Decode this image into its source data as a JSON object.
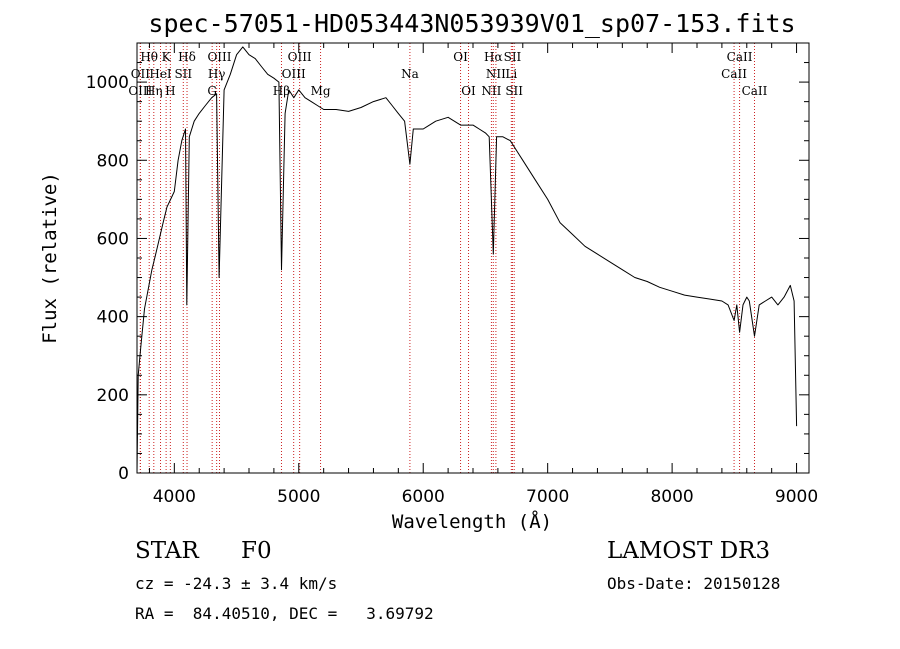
{
  "chart_data": {
    "type": "line",
    "title": "spec-57051-HD053443N053939V01_sp07-153.fits",
    "xlabel": "Wavelength (Å)",
    "ylabel": "Flux (relative)",
    "xlim": [
      3700,
      9100
    ],
    "ylim": [
      0,
      1100
    ],
    "xticks": [
      4000,
      5000,
      6000,
      7000,
      8000,
      9000
    ],
    "yticks": [
      0,
      200,
      400,
      600,
      800,
      1000
    ],
    "grid": false,
    "legend": "none",
    "series": [
      {
        "name": "flux",
        "x": [
          3700,
          3710,
          3730,
          3760,
          3790,
          3820,
          3850,
          3880,
          3910,
          3940,
          3970,
          4000,
          4030,
          4060,
          4090,
          4100,
          4120,
          4160,
          4200,
          4250,
          4300,
          4340,
          4360,
          4400,
          4450,
          4500,
          4550,
          4600,
          4650,
          4700,
          4750,
          4800,
          4840,
          4861,
          4890,
          4920,
          4960,
          5000,
          5050,
          5100,
          5150,
          5200,
          5300,
          5400,
          5500,
          5600,
          5700,
          5750,
          5800,
          5850,
          5893,
          5920,
          6000,
          6100,
          6200,
          6300,
          6400,
          6450,
          6500,
          6530,
          6563,
          6590,
          6640,
          6700,
          6760,
          6800,
          6900,
          7000,
          7100,
          7200,
          7300,
          7400,
          7500,
          7600,
          7700,
          7800,
          7900,
          8000,
          8100,
          8200,
          8300,
          8400,
          8450,
          8498,
          8520,
          8542,
          8570,
          8600,
          8620,
          8662,
          8700,
          8750,
          8800,
          8850,
          8900,
          8950,
          8980,
          9000
        ],
        "y": [
          0,
          250,
          320,
          420,
          470,
          520,
          560,
          600,
          640,
          680,
          700,
          720,
          800,
          850,
          880,
          430,
          860,
          900,
          920,
          940,
          960,
          970,
          500,
          980,
          1020,
          1070,
          1090,
          1070,
          1060,
          1040,
          1020,
          1010,
          1000,
          520,
          920,
          980,
          960,
          980,
          960,
          950,
          940,
          930,
          930,
          925,
          935,
          950,
          960,
          940,
          920,
          900,
          790,
          880,
          880,
          900,
          910,
          890,
          890,
          880,
          870,
          860,
          560,
          860,
          860,
          850,
          820,
          800,
          750,
          700,
          640,
          610,
          580,
          560,
          540,
          520,
          500,
          490,
          475,
          465,
          455,
          450,
          445,
          440,
          430,
          390,
          430,
          360,
          430,
          450,
          440,
          350,
          430,
          440,
          450,
          430,
          450,
          480,
          440,
          120
        ]
      }
    ],
    "spectral_lines": [
      {
        "name": "Hθ",
        "x": 3798,
        "row": 0
      },
      {
        "name": "K",
        "x": 3934,
        "row": 0
      },
      {
        "name": "Hδ",
        "x": 4102,
        "row": 0
      },
      {
        "name": "OIII",
        "x": 4363,
        "row": 0
      },
      {
        "name": "OIII",
        "x": 5007,
        "row": 0
      },
      {
        "name": "OI",
        "x": 6300,
        "row": 0
      },
      {
        "name": "Hα",
        "x": 6563,
        "row": 0
      },
      {
        "name": "SII",
        "x": 6717,
        "row": 0
      },
      {
        "name": "CaII",
        "x": 8542,
        "row": 0
      },
      {
        "name": "OII",
        "x": 3727,
        "row": 1
      },
      {
        "name": "HeI",
        "x": 3889,
        "row": 1
      },
      {
        "name": "SII",
        "x": 4072,
        "row": 1
      },
      {
        "name": "Hγ",
        "x": 4340,
        "row": 1
      },
      {
        "name": "OIII",
        "x": 4959,
        "row": 1
      },
      {
        "name": "Na",
        "x": 5893,
        "row": 1
      },
      {
        "name": "NII",
        "x": 6584,
        "row": 1
      },
      {
        "name": "Li",
        "x": 6708,
        "row": 1
      },
      {
        "name": "CaII",
        "x": 8498,
        "row": 1
      },
      {
        "name": "OIII",
        "x": 3727,
        "row": 2
      },
      {
        "name": "Hη",
        "x": 3835,
        "row": 2
      },
      {
        "name": "H",
        "x": 3968,
        "row": 2
      },
      {
        "name": "G",
        "x": 4304,
        "row": 2
      },
      {
        "name": "Hβ",
        "x": 4861,
        "row": 2
      },
      {
        "name": "Mg",
        "x": 5175,
        "row": 2
      },
      {
        "name": "OI",
        "x": 6364,
        "row": 2
      },
      {
        "name": "NII",
        "x": 6548,
        "row": 2
      },
      {
        "name": "SII",
        "x": 6731,
        "row": 2
      },
      {
        "name": "CaII",
        "x": 8662,
        "row": 2
      }
    ]
  },
  "info": {
    "object_class": "STAR",
    "subclass": "F0",
    "survey": "LAMOST DR3",
    "redshift": "cz = -24.3 ± 3.4 km/s",
    "obs_date": "Obs-Date: 20150128",
    "coords": "RA =  84.40510, DEC =   3.69792"
  },
  "colors": {
    "axis": "#000000",
    "spectrum": "#000000",
    "marker_lines": "#cc2222"
  }
}
